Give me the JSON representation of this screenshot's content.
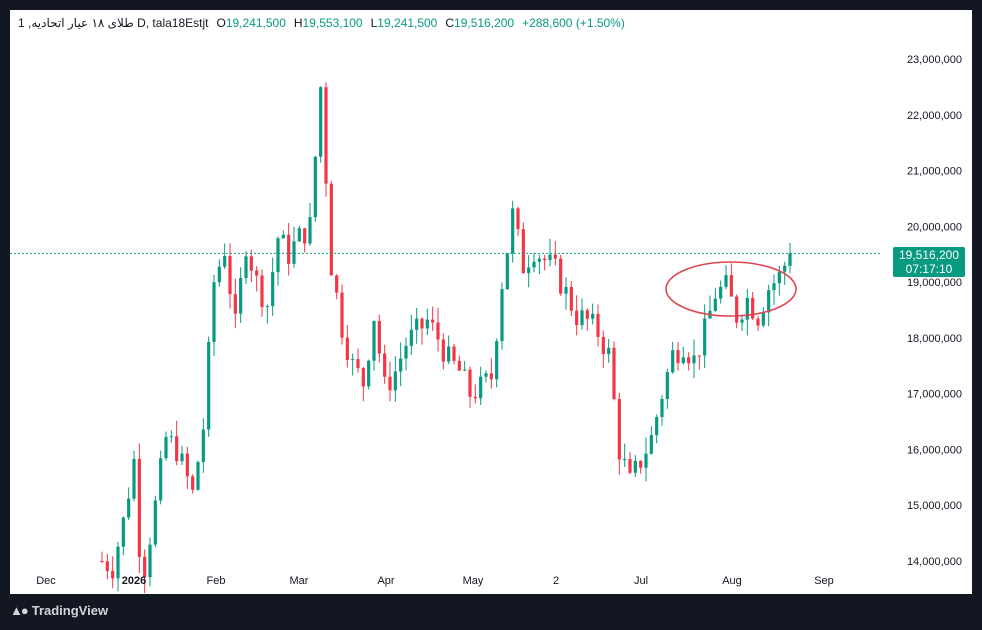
{
  "header": {
    "symbol": "1 ,طلای ۱۸ عیار اتحادیه D, tala18Estjt",
    "open_label": "O",
    "open": "19,241,500",
    "high_label": "H",
    "high": "19,553,100",
    "low_label": "L",
    "low": "19,241,500",
    "close_label": "C",
    "close": "19,516,200",
    "change": "+288,600 (+1.50%)"
  },
  "price_badge": {
    "price": "19,516,200",
    "countdown": "07:17:10"
  },
  "footer": {
    "brand": "TradingView"
  },
  "colors": {
    "up": "#089981",
    "down": "#f23645",
    "ellipse": "#e0444f",
    "dashed": "#089981"
  },
  "chart_data": {
    "type": "candlestick",
    "y_ticks": [
      "23,000,000",
      "22,000,000",
      "21,000,000",
      "20,000,000",
      "19,000,000",
      "18,000,000",
      "17,000,000",
      "16,000,000",
      "15,000,000",
      "14,000,000"
    ],
    "y_tick_values": [
      23000000,
      22000000,
      21000000,
      20000000,
      19000000,
      18000000,
      17000000,
      16000000,
      15000000,
      14000000
    ],
    "x_ticks": [
      "Dec",
      "2026",
      "Feb",
      "Mar",
      "Apr",
      "May",
      "2",
      "Jul",
      "Aug",
      "Sep"
    ],
    "ylim": [
      13900000,
      23200000
    ],
    "last_price": 19516200,
    "annotation": {
      "shape": "ellipse",
      "note": "highlight recent consolidation (late Jul – Aug)"
    },
    "close_path": [
      [
        14000000,
        0
      ],
      [
        13900000,
        2
      ],
      [
        14700000,
        4
      ],
      [
        15800000,
        6
      ],
      [
        14300000,
        7
      ],
      [
        13900000,
        8
      ],
      [
        15000000,
        10
      ],
      [
        16200000,
        12
      ],
      [
        16000000,
        14
      ],
      [
        15200000,
        17
      ],
      [
        16400000,
        19
      ],
      [
        19000000,
        21
      ],
      [
        19600000,
        23
      ],
      [
        18200000,
        25
      ],
      [
        19700000,
        27
      ],
      [
        19000000,
        29
      ],
      [
        18600000,
        31
      ],
      [
        19800000,
        33
      ],
      [
        19500000,
        35
      ],
      [
        19800000,
        37
      ],
      [
        20000000,
        39
      ],
      [
        22500000,
        41
      ],
      [
        19300000,
        43
      ],
      [
        18200000,
        45
      ],
      [
        17500000,
        47
      ],
      [
        17200000,
        49
      ],
      [
        18400000,
        51
      ],
      [
        17100000,
        53
      ],
      [
        17400000,
        55
      ],
      [
        17900000,
        57
      ],
      [
        18100000,
        59
      ],
      [
        18300000,
        61
      ],
      [
        18000000,
        63
      ],
      [
        17600000,
        65
      ],
      [
        17400000,
        67
      ],
      [
        17000000,
        69
      ],
      [
        17100000,
        71
      ],
      [
        17300000,
        73
      ],
      [
        19000000,
        75
      ],
      [
        20200000,
        77
      ],
      [
        19300000,
        79
      ],
      [
        19600000,
        81
      ],
      [
        19400000,
        83
      ],
      [
        19200000,
        85
      ],
      [
        18800000,
        87
      ],
      [
        18400000,
        89
      ],
      [
        18300000,
        91
      ],
      [
        18100000,
        93
      ],
      [
        17700000,
        95
      ],
      [
        16000000,
        97
      ],
      [
        15400000,
        99
      ],
      [
        15800000,
        101
      ],
      [
        16200000,
        103
      ],
      [
        17000000,
        105
      ],
      [
        17700000,
        107
      ],
      [
        17900000,
        109
      ],
      [
        17600000,
        111
      ],
      [
        18100000,
        113
      ],
      [
        18800000,
        115
      ],
      [
        18900000,
        117
      ],
      [
        18400000,
        119
      ],
      [
        18700000,
        121
      ],
      [
        18400000,
        123
      ],
      [
        18900000,
        125
      ],
      [
        19100000,
        127
      ],
      [
        19516200,
        129
      ]
    ]
  }
}
